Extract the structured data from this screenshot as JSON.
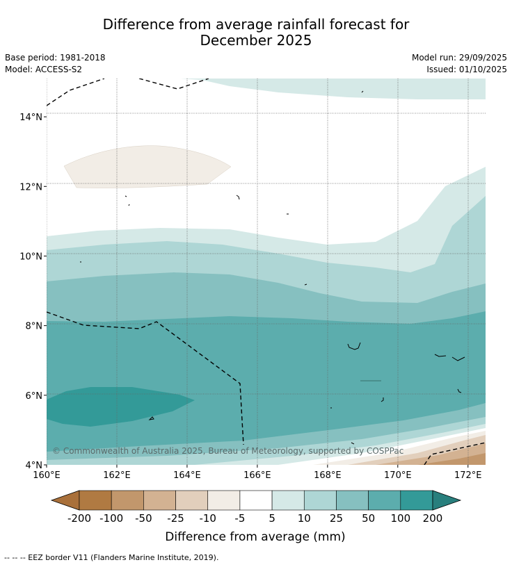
{
  "chart_data": {
    "type": "heatmap",
    "title_line1": "Difference from average rainfall forecast for",
    "title_line2": "December 2025",
    "base_period": "Base period: 1981-2018",
    "model": "Model: ACCESS-S2",
    "model_run": "Model run: 29/09/2025",
    "issued": "Issued: 01/10/2025",
    "x_ticks": [
      "160°E",
      "162°E",
      "164°E",
      "166°E",
      "168°E",
      "170°E",
      "172°E"
    ],
    "y_ticks": [
      "14°N",
      "12°N",
      "10°N",
      "8°N",
      "6°N",
      "4°N"
    ],
    "lon_range": [
      160,
      172.5
    ],
    "lat_range": [
      4,
      15.1
    ],
    "colorbar": {
      "label": "Difference from average (mm)",
      "boundaries": [
        "-200",
        "-100",
        "-50",
        "-25",
        "-10",
        "-5",
        "5",
        "10",
        "25",
        "50",
        "100",
        "200"
      ],
      "colors": [
        "#a9703a",
        "#b07a42",
        "#c2976c",
        "#d3b292",
        "#e2cfbc",
        "#f2ede6",
        "#ffffff",
        "#d5e9e7",
        "#aed6d5",
        "#86c0c0",
        "#5cadad",
        "#339a98",
        "#287f7d"
      ]
    },
    "copyright": "© Commonwealth of Australia 2025, Bureau of Meteorology, supported by COSPPac",
    "footer": "--  --  -- EEZ border V11 (Flanders Marine Institute, 2019)."
  }
}
